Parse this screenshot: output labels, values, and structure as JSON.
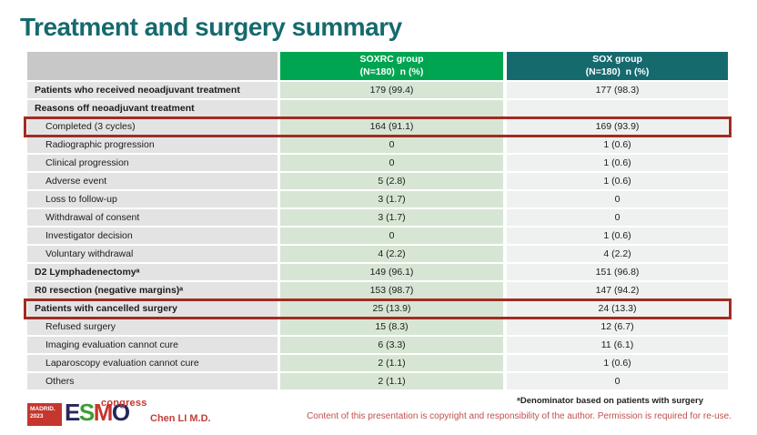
{
  "slide": {
    "title": "Treatment and surgery summary",
    "presenter": "Chen LI M.D.",
    "footnote": "ᵃDenominator based on patients with surgery",
    "copyright": "Content of this presentation is copyright and responsibility of the author. Permission is required for re-use.",
    "logo": {
      "city_line1": "MADRID.",
      "city_line2": "2023",
      "letter1": "E",
      "letter2": "S",
      "letter3": "M",
      "letter4": "O",
      "congress": "congress"
    }
  },
  "colors": {
    "title_teal": "#156a6e",
    "soxrc_header_green": "#00a551",
    "sox_header_teal": "#156a6e",
    "label_col_gray": "#e4e3e3",
    "soxrc_col_green": "#d7e6d4",
    "sox_col_gray": "#eef1ef",
    "highlight_border_red": "#9f2d24",
    "footer_red": "#c0403a"
  },
  "table": {
    "header": {
      "soxrc_line1": "SOXRC group",
      "soxrc_line2": "(N=180)  n (%)",
      "sox_line1": "SOX group",
      "sox_line2": "(N=180)  n (%)"
    },
    "rows": [
      {
        "label": "Patients who received neoadjuvant treatment",
        "soxrc": "179 (99.4)",
        "sox": "177 (98.3)",
        "bold": true,
        "highlighted": false
      },
      {
        "label": "Reasons off neoadjuvant treatment",
        "soxrc": "",
        "sox": "",
        "bold": true,
        "highlighted": false
      },
      {
        "label": "Completed (3 cycles)",
        "soxrc": "164 (91.1)",
        "sox": "169 (93.9)",
        "bold": false,
        "highlighted": true
      },
      {
        "label": "Radiographic progression",
        "soxrc": "0",
        "sox": "1 (0.6)",
        "bold": false,
        "highlighted": false
      },
      {
        "label": "Clinical progression",
        "soxrc": "0",
        "sox": "1 (0.6)",
        "bold": false,
        "highlighted": false
      },
      {
        "label": "Adverse event",
        "soxrc": "5 (2.8)",
        "sox": "1 (0.6)",
        "bold": false,
        "highlighted": false
      },
      {
        "label": "Loss to follow-up",
        "soxrc": "3 (1.7)",
        "sox": "0",
        "bold": false,
        "highlighted": false
      },
      {
        "label": "Withdrawal of consent",
        "soxrc": "3 (1.7)",
        "sox": "0",
        "bold": false,
        "highlighted": false
      },
      {
        "label": "Investigator decision",
        "soxrc": "0",
        "sox": "1 (0.6)",
        "bold": false,
        "highlighted": false
      },
      {
        "label": "Voluntary withdrawal",
        "soxrc": "4 (2.2)",
        "sox": "4 (2.2)",
        "bold": false,
        "highlighted": false
      },
      {
        "label": "D2 Lymphadenectomyᵃ",
        "soxrc": "149 (96.1)",
        "sox": "151 (96.8)",
        "bold": true,
        "highlighted": false
      },
      {
        "label": "R0 resection (negative margins)ᵃ",
        "soxrc": "153 (98.7)",
        "sox": "147 (94.2)",
        "bold": true,
        "highlighted": false
      },
      {
        "label": "Patients with cancelled surgery",
        "soxrc": "25 (13.9)",
        "sox": "24 (13.3)",
        "bold": true,
        "highlighted": true
      },
      {
        "label": "Refused surgery",
        "soxrc": "15 (8.3)",
        "sox": "12 (6.7)",
        "bold": false,
        "highlighted": false
      },
      {
        "label": "Imaging evaluation cannot cure",
        "soxrc": "6 (3.3)",
        "sox": "11 (6.1)",
        "bold": false,
        "highlighted": false
      },
      {
        "label": "Laparoscopy evaluation cannot cure",
        "soxrc": "2 (1.1)",
        "sox": "1 (0.6)",
        "bold": false,
        "highlighted": false
      },
      {
        "label": "Others",
        "soxrc": "2 (1.1)",
        "sox": "0",
        "bold": false,
        "highlighted": false
      }
    ]
  }
}
